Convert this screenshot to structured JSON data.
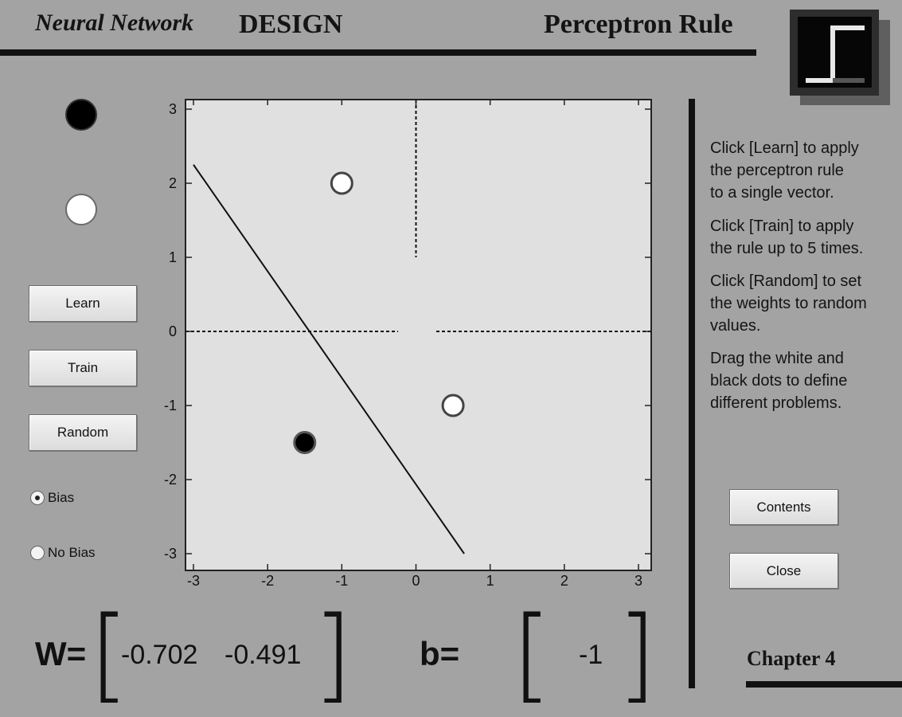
{
  "header": {
    "brand_italic": "Neural Network",
    "brand_caps": "DESIGN",
    "title": "Perceptron Rule",
    "logo_icon": "step-function-icon"
  },
  "legend": {
    "black_dot": "black-class-dot",
    "white_dot": "white-class-dot"
  },
  "buttons": {
    "learn": "Learn",
    "train": "Train",
    "random": "Random",
    "contents": "Contents",
    "close": "Close"
  },
  "bias_options": [
    {
      "label": "Bias",
      "selected": true
    },
    {
      "label": "No Bias",
      "selected": false
    }
  ],
  "instructions": {
    "p1": [
      "Click [Learn] to apply",
      "the perceptron rule",
      "to a single vector."
    ],
    "p2": [
      "Click [Train] to apply",
      "the rule up to 5 times."
    ],
    "p3": [
      "Click [Random] to set",
      "the weights to random",
      "values."
    ],
    "p4": [
      "Drag the white and",
      "black dots to define",
      "different problems."
    ]
  },
  "plot": {
    "xlim": [
      -3,
      3
    ],
    "ylim": [
      -3,
      3
    ],
    "x_ticks": [
      "-3",
      "-2",
      "-1",
      "0",
      "1",
      "2",
      "3"
    ],
    "y_ticks": [
      "3",
      "2",
      "1",
      "0",
      "-1",
      "-2",
      "-3"
    ],
    "white_points": [
      [
        -1,
        2
      ],
      [
        0.5,
        -1
      ]
    ],
    "black_points": [
      [
        -1.5,
        -1.5
      ]
    ],
    "decision_line": [
      [
        -3,
        2.25
      ],
      [
        0.65,
        -3.0
      ]
    ]
  },
  "weights": {
    "w_label": "W=",
    "w1": "-0.702",
    "w2": "-0.491",
    "b_label": "b=",
    "b": "-1"
  },
  "footer": {
    "chapter": "Chapter 4"
  }
}
